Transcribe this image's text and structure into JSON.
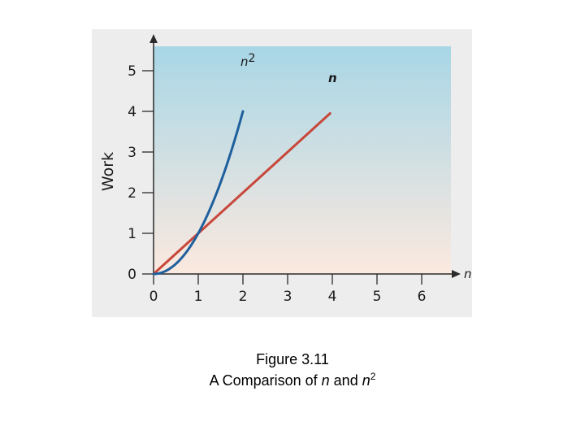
{
  "chart_data": {
    "type": "line",
    "xlabel": "n",
    "ylabel": "Work",
    "xlim": [
      0,
      6.6
    ],
    "ylim": [
      0,
      5.6
    ],
    "x_ticks": [
      0,
      1,
      2,
      3,
      4,
      5,
      6
    ],
    "y_ticks": [
      0,
      1,
      2,
      3,
      4,
      5
    ],
    "grid": false,
    "series": [
      {
        "name": "n",
        "formula": "y = n",
        "color": "#c8473a",
        "x": [
          0,
          1,
          2,
          3,
          3.95
        ],
        "y": [
          0,
          1,
          2,
          3,
          3.95
        ]
      },
      {
        "name": "n2",
        "formula": "y = n^2",
        "color": "#1e5f9e",
        "x": [
          0,
          0.5,
          1,
          1.5,
          2
        ],
        "y": [
          0,
          0.25,
          1,
          2.25,
          4
        ]
      }
    ]
  },
  "caption": {
    "line1": "Figure 3.11",
    "line2_prefix": "A Comparison of ",
    "line2_n1": "n",
    "line2_mid": " and ",
    "line2_n2": "n",
    "line2_sup": "2"
  },
  "colors": {
    "panel_top": "#a8d6e6",
    "panel_bottom": "#fbe9df",
    "outer_bg": "#ededed"
  }
}
